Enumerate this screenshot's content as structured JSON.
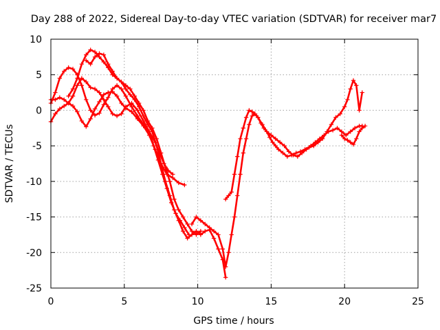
{
  "chart_data": {
    "type": "scatter",
    "title": "Day 288 of 2022, Sidereal Day-to-day VTEC variation (SDTVAR) for receiver mar7",
    "xlabel": "GPS time / hours",
    "ylabel": "SDTVAR / TECUs",
    "xlim": [
      0,
      25
    ],
    "ylim": [
      -25,
      10
    ],
    "xticks": [
      0,
      5,
      10,
      15,
      20,
      25
    ],
    "yticks": [
      -25,
      -20,
      -15,
      -10,
      -5,
      0,
      5,
      10
    ],
    "grid": true,
    "marker": "+",
    "color": "#ff0000",
    "series": [
      {
        "x": [
          0.0,
          0.3,
          0.6,
          0.9,
          1.2,
          1.5,
          1.8,
          2.1,
          2.4,
          2.7,
          3.0,
          3.3,
          3.6,
          3.9,
          4.2,
          4.5,
          4.8,
          5.1,
          5.5,
          5.9,
          6.3,
          6.7,
          7.1,
          7.5,
          7.9,
          8.3,
          8.7,
          9.1
        ],
        "y": [
          1.5,
          1.5,
          1.8,
          1.5,
          1.0,
          0.6,
          -0.2,
          -1.5,
          -2.3,
          -1.2,
          0.2,
          1.2,
          2.2,
          2.5,
          2.6,
          2.0,
          1.0,
          0.3,
          -0.2,
          -1.2,
          -2.2,
          -3.5,
          -5.5,
          -7.5,
          -9.0,
          -9.5,
          -10.2,
          -10.5
        ]
      },
      {
        "x": [
          0.0,
          0.3,
          0.6,
          0.9,
          1.2,
          1.5,
          1.8,
          2.1,
          2.4,
          2.7,
          3.0,
          3.3,
          3.6,
          3.9,
          4.2,
          4.5,
          4.8,
          5.1,
          5.5,
          5.9,
          6.3,
          6.7,
          7.1,
          7.4,
          7.7,
          8.0,
          8.3
        ],
        "y": [
          1.0,
          2.5,
          4.5,
          5.5,
          6.0,
          5.8,
          5.0,
          3.5,
          1.5,
          0.0,
          -0.7,
          -0.4,
          0.8,
          1.8,
          3.0,
          3.5,
          3.0,
          2.0,
          0.5,
          -0.8,
          -2.0,
          -3.0,
          -4.5,
          -6.0,
          -7.5,
          -8.5,
          -9.0
        ]
      },
      {
        "x": [
          0.0,
          0.3,
          0.6,
          0.9,
          1.2,
          1.5,
          1.8,
          2.1,
          2.4,
          2.7,
          3.0,
          3.3,
          3.6,
          3.9,
          4.2,
          4.5,
          4.8,
          5.1,
          5.5,
          5.9,
          6.3,
          6.7,
          7.0,
          7.3,
          7.6,
          7.9,
          8.2,
          8.5,
          8.8,
          9.1,
          9.4
        ],
        "y": [
          -1.6,
          -0.5,
          0.2,
          0.6,
          1.0,
          2.0,
          3.5,
          4.5,
          4.0,
          3.2,
          3.0,
          2.5,
          1.5,
          0.5,
          -0.5,
          -0.8,
          -0.5,
          0.5,
          1.0,
          0.0,
          -1.5,
          -3.0,
          -5.0,
          -7.0,
          -9.0,
          -11.0,
          -13.0,
          -14.5,
          -15.5,
          -16.5,
          -17.5
        ]
      },
      {
        "x": [
          1.2,
          1.5,
          1.8,
          2.1,
          2.4,
          2.7,
          3.0,
          3.3,
          3.6,
          3.9,
          4.2,
          4.5,
          4.8,
          5.1,
          5.4,
          5.7,
          6.0,
          6.3,
          6.6,
          6.9,
          7.2,
          7.5,
          7.8,
          8.1,
          8.4,
          8.7,
          9.0,
          9.3,
          9.6,
          9.9,
          10.2,
          10.5,
          10.8,
          11.1,
          11.4,
          11.7,
          11.9
        ],
        "y": [
          2.0,
          3.0,
          4.5,
          6.5,
          7.8,
          8.5,
          8.2,
          7.5,
          6.8,
          6.0,
          5.0,
          4.5,
          4.0,
          3.0,
          2.2,
          1.5,
          0.5,
          -0.8,
          -2.0,
          -3.0,
          -5.0,
          -7.5,
          -10.0,
          -12.0,
          -14.0,
          -15.5,
          -17.0,
          -18.0,
          -17.5,
          -17.0,
          -17.5,
          -17.0,
          -16.8,
          -18.0,
          -19.5,
          -21.0,
          -23.5
        ]
      },
      {
        "x": [
          2.4,
          2.7,
          3.0,
          3.3,
          3.6,
          3.9,
          4.2,
          4.5,
          4.8,
          5.1,
          5.4,
          5.7,
          6.0,
          6.3,
          6.6,
          6.9,
          7.2,
          7.5,
          7.8,
          8.1,
          8.4,
          8.7,
          9.0,
          9.3,
          9.6,
          9.9,
          10.2
        ],
        "y": [
          7.0,
          6.5,
          7.5,
          8.0,
          7.8,
          6.5,
          5.5,
          4.5,
          4.0,
          3.5,
          3.0,
          2.0,
          1.0,
          0.0,
          -1.5,
          -2.5,
          -4.0,
          -6.0,
          -8.0,
          -10.0,
          -12.5,
          -14.0,
          -15.0,
          -16.0,
          -17.0,
          -17.5,
          -17.0
        ]
      },
      {
        "x": [
          9.6,
          9.9,
          10.2,
          10.5,
          10.8,
          11.1,
          11.4,
          11.7,
          11.9,
          12.1,
          12.3,
          12.5,
          12.7,
          12.9,
          13.1,
          13.3,
          13.5,
          13.7,
          13.9,
          14.1,
          14.4,
          14.7,
          15.0,
          15.3,
          15.6,
          15.9,
          16.2,
          16.5,
          16.8,
          17.1,
          17.4,
          17.7,
          18.0,
          18.3,
          18.6,
          18.9,
          19.2,
          19.5,
          19.8,
          20.1,
          20.4,
          20.7,
          21.0,
          21.2
        ],
        "y": [
          -16.0,
          -15.0,
          -15.5,
          -16.0,
          -16.5,
          -17.0,
          -17.5,
          -19.5,
          -22.0,
          -20.0,
          -17.5,
          -15.0,
          -12.0,
          -9.0,
          -6.0,
          -4.0,
          -2.0,
          -0.8,
          -0.5,
          -1.0,
          -2.0,
          -3.0,
          -3.5,
          -4.0,
          -4.5,
          -5.0,
          -5.8,
          -6.3,
          -6.5,
          -6.0,
          -5.5,
          -5.0,
          -4.5,
          -4.0,
          -3.5,
          -3.0,
          -2.8,
          -2.5,
          -3.0,
          -3.5,
          -3.0,
          -2.5,
          -2.2,
          -2.2
        ]
      },
      {
        "x": [
          11.9,
          12.1,
          12.3,
          12.5,
          12.7,
          12.9,
          13.1,
          13.3,
          13.5,
          13.7,
          13.9,
          14.1,
          14.3,
          14.5,
          14.7,
          14.9,
          15.1,
          15.3,
          15.5,
          15.8,
          16.1,
          16.4,
          16.7,
          17.0,
          17.3,
          17.6,
          17.9,
          18.2,
          18.5,
          18.8,
          19.1,
          19.4,
          19.7,
          20.0,
          20.2,
          20.4,
          20.6,
          20.8,
          21.0,
          21.2
        ],
        "y": [
          -12.5,
          -12.0,
          -11.5,
          -9.0,
          -6.5,
          -4.0,
          -2.5,
          -1.0,
          0.0,
          -0.2,
          -0.5,
          -1.0,
          -1.8,
          -2.5,
          -3.0,
          -3.8,
          -4.5,
          -5.0,
          -5.5,
          -6.0,
          -6.5,
          -6.3,
          -6.0,
          -5.8,
          -5.5,
          -5.2,
          -5.0,
          -4.5,
          -4.0,
          -3.0,
          -2.0,
          -1.0,
          -0.5,
          0.5,
          1.5,
          3.0,
          4.2,
          3.5,
          0.0,
          2.5
        ]
      },
      {
        "x": [
          19.8,
          20.0,
          20.2,
          20.4,
          20.6,
          20.8,
          21.0,
          21.2,
          21.4
        ],
        "y": [
          -3.5,
          -4.0,
          -4.2,
          -4.5,
          -4.8,
          -4.0,
          -3.0,
          -2.5,
          -2.2
        ]
      }
    ]
  }
}
